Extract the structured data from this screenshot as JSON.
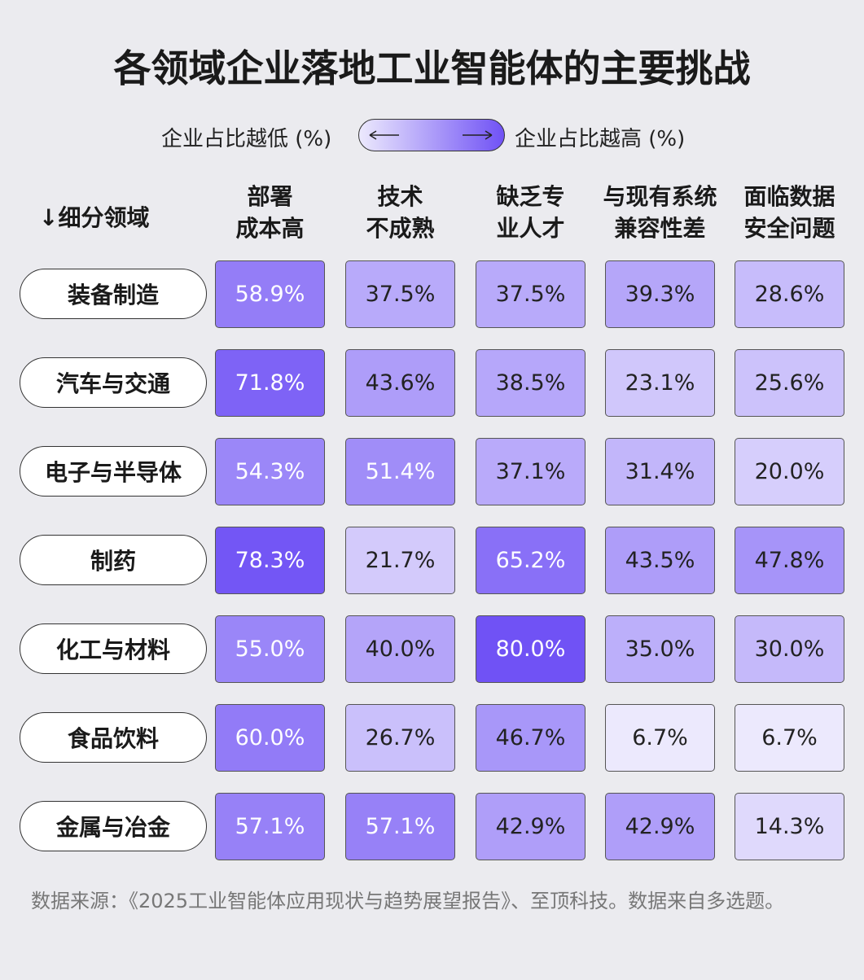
{
  "chart_data": {
    "type": "heatmap",
    "title": "各领域企业落地工业智能体的主要挑战",
    "legend": {
      "low": "企业占比越低 (%)",
      "high": "企业占比越高 (%)"
    },
    "row_header": "↓细分领域",
    "columns": [
      "部署\n成本高",
      "技术\n不成熟",
      "缺乏专\n业人才",
      "与现有系统\n兼容性差",
      "面临数据\n安全问题"
    ],
    "rows": [
      "装备制造",
      "汽车与交通",
      "电子与半导体",
      "制药",
      "化工与材料",
      "食品饮料",
      "金属与冶金"
    ],
    "values": [
      [
        58.9,
        37.5,
        37.5,
        39.3,
        28.6
      ],
      [
        71.8,
        43.6,
        38.5,
        23.1,
        25.6
      ],
      [
        54.3,
        51.4,
        37.1,
        31.4,
        20.0
      ],
      [
        78.3,
        21.7,
        65.2,
        43.5,
        47.8
      ],
      [
        55.0,
        40.0,
        80.0,
        35.0,
        30.0
      ],
      [
        60.0,
        26.7,
        46.7,
        6.7,
        6.7
      ],
      [
        57.1,
        57.1,
        42.9,
        42.9,
        14.3
      ]
    ],
    "value_labels": [
      [
        "58.9%",
        "37.5%",
        "37.5%",
        "39.3%",
        "28.6%"
      ],
      [
        "71.8%",
        "43.6%",
        "38.5%",
        "23.1%",
        "25.6%"
      ],
      [
        "54.3%",
        "51.4%",
        "37.1%",
        "31.4%",
        "20.0%"
      ],
      [
        "78.3%",
        "21.7%",
        "65.2%",
        "43.5%",
        "47.8%"
      ],
      [
        "55.0%",
        "40.0%",
        "80.0%",
        "35.0%",
        "30.0%"
      ],
      [
        "60.0%",
        "26.7%",
        "46.7%",
        "6.7%",
        "6.7%"
      ],
      [
        "57.1%",
        "57.1%",
        "42.9%",
        "42.9%",
        "14.3%"
      ]
    ],
    "colors": [
      "#ece9fd",
      "#7052f5"
    ],
    "source": "数据来源：《2025工业智能体应用现状与趋势展望报告》、至顶科技。数据来自多选题。"
  }
}
